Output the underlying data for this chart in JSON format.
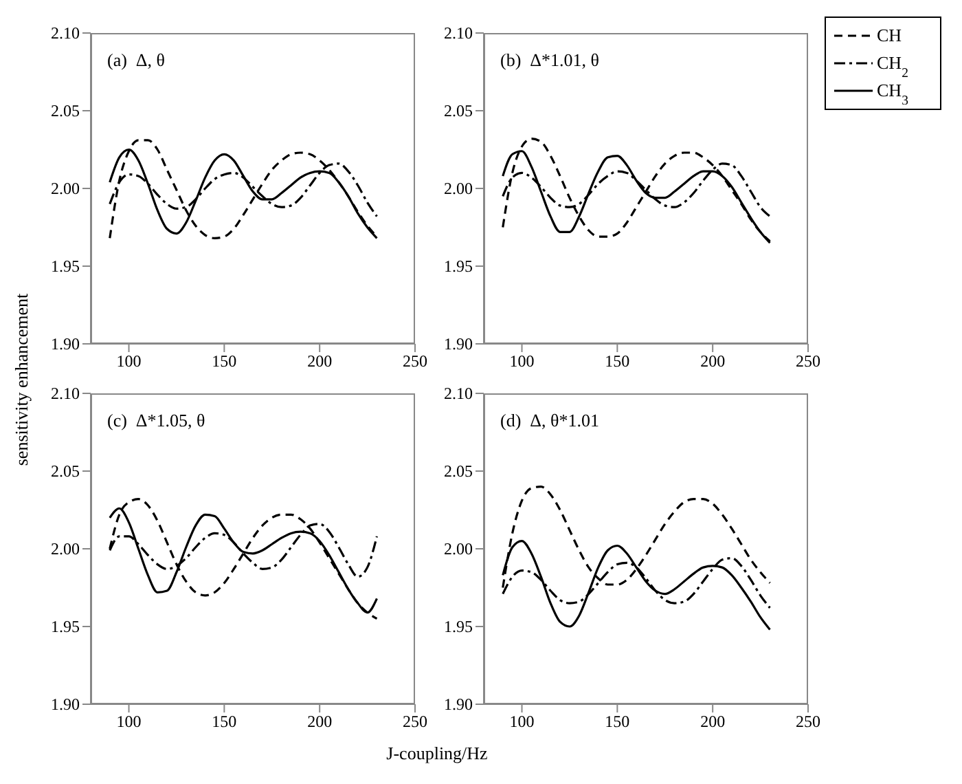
{
  "chart_data": [
    {
      "type": "line",
      "title": "(a)  Δ, θ",
      "ylabel": "sensitivity enhancement",
      "x": [
        90,
        95,
        100,
        105,
        110,
        115,
        120,
        125,
        130,
        135,
        140,
        145,
        150,
        155,
        160,
        165,
        170,
        175,
        180,
        185,
        190,
        195,
        200,
        205,
        210,
        215,
        220,
        225,
        230
      ],
      "xlim": [
        80,
        250
      ],
      "xticks": [
        100,
        150,
        200,
        250
      ],
      "ylim": [
        1.9,
        2.1
      ],
      "yticks": [
        {
          "value": 1.9,
          "label": "1.90"
        },
        {
          "value": 1.95,
          "label": "1.95"
        },
        {
          "value": 2.0,
          "label": "2.00"
        },
        {
          "value": 2.05,
          "label": "2.05"
        },
        {
          "value": 2.1,
          "label": "2.10"
        }
      ],
      "series": [
        {
          "color": "#000000",
          "line_style": "dashed",
          "values": [
            1.968,
            2.005,
            2.024,
            2.031,
            2.031,
            2.025,
            2.012,
            1.999,
            1.986,
            1.976,
            1.97,
            1.968,
            1.969,
            1.974,
            1.983,
            1.993,
            2.003,
            2.012,
            2.018,
            2.022,
            2.023,
            2.022,
            2.018,
            2.012,
            2.004,
            1.995,
            1.985,
            1.976,
            1.969
          ]
        },
        {
          "color": "#000000",
          "line_style": "dotted",
          "values": [
            1.99,
            2.004,
            2.009,
            2.008,
            2.003,
            1.996,
            1.99,
            1.987,
            1.988,
            1.993,
            2.0,
            2.006,
            2.009,
            2.01,
            2.007,
            2.001,
            1.995,
            1.99,
            1.988,
            1.989,
            1.994,
            2.002,
            2.01,
            2.015,
            2.016,
            2.011,
            2.002,
            1.991,
            1.982
          ]
        },
        {
          "color": "#000000",
          "line_style": "solid",
          "values": [
            2.004,
            2.02,
            2.025,
            2.018,
            2.003,
            1.986,
            1.974,
            1.971,
            1.978,
            1.992,
            2.007,
            2.018,
            2.022,
            2.018,
            2.008,
            1.998,
            1.993,
            1.993,
            1.997,
            2.002,
            2.007,
            2.01,
            2.011,
            2.01,
            2.004,
            1.995,
            1.984,
            1.975,
            1.968
          ]
        }
      ]
    },
    {
      "type": "line",
      "title": "(b)  Δ*1.01, θ",
      "legend": "right",
      "x": [
        90,
        95,
        100,
        105,
        110,
        115,
        120,
        125,
        130,
        135,
        140,
        145,
        150,
        155,
        160,
        165,
        170,
        175,
        180,
        185,
        190,
        195,
        200,
        205,
        210,
        215,
        220,
        225,
        230
      ],
      "xlim": [
        80,
        250
      ],
      "xticks": [
        100,
        150,
        200,
        250
      ],
      "ylim": [
        1.9,
        2.1
      ],
      "yticks": [
        {
          "value": 1.9,
          "label": "1.90"
        },
        {
          "value": 1.95,
          "label": "1.95"
        },
        {
          "value": 2.0,
          "label": "2.00"
        },
        {
          "value": 2.05,
          "label": "2.05"
        },
        {
          "value": 2.1,
          "label": "2.10"
        }
      ],
      "series": [
        {
          "name": "CH",
          "color": "#000000",
          "line_style": "dashed",
          "values": [
            1.975,
            2.01,
            2.027,
            2.032,
            2.03,
            2.021,
            2.008,
            1.994,
            1.982,
            1.973,
            1.969,
            1.969,
            1.971,
            1.978,
            1.988,
            1.998,
            2.008,
            2.016,
            2.021,
            2.023,
            2.023,
            2.02,
            2.015,
            2.008,
            1.999,
            1.99,
            1.98,
            1.972,
            1.966
          ]
        },
        {
          "name": "CH$_{2}$",
          "color": "#000000",
          "line_style": "dotted",
          "values": [
            1.995,
            2.007,
            2.01,
            2.007,
            2.001,
            1.994,
            1.989,
            1.988,
            1.99,
            1.996,
            2.003,
            2.008,
            2.011,
            2.01,
            2.005,
            1.999,
            1.993,
            1.989,
            1.988,
            1.991,
            1.997,
            2.005,
            2.012,
            2.016,
            2.015,
            2.008,
            1.998,
            1.988,
            1.982
          ]
        },
        {
          "name": "CH$_{3}$",
          "color": "#000000",
          "line_style": "solid",
          "values": [
            2.008,
            2.022,
            2.024,
            2.014,
            1.998,
            1.982,
            1.972,
            1.972,
            1.982,
            1.997,
            2.011,
            2.02,
            2.021,
            2.015,
            2.005,
            1.997,
            1.994,
            1.994,
            1.998,
            2.003,
            2.008,
            2.011,
            2.011,
            2.008,
            2.001,
            1.991,
            1.981,
            1.972,
            1.965
          ]
        }
      ]
    },
    {
      "type": "line",
      "title": "(c)  Δ*1.05, θ",
      "xlabel": "J-coupling/Hz",
      "x": [
        90,
        95,
        100,
        105,
        110,
        115,
        120,
        125,
        130,
        135,
        140,
        145,
        150,
        155,
        160,
        165,
        170,
        175,
        180,
        185,
        190,
        195,
        200,
        205,
        210,
        215,
        220,
        225,
        230
      ],
      "xlim": [
        80,
        250
      ],
      "xticks": [
        100,
        150,
        200,
        250
      ],
      "ylim": [
        1.9,
        2.1
      ],
      "yticks": [
        {
          "value": 1.9,
          "label": "1.90"
        },
        {
          "value": 1.95,
          "label": "1.95"
        },
        {
          "value": 2.0,
          "label": "2.00"
        },
        {
          "value": 2.05,
          "label": "2.05"
        },
        {
          "value": 2.1,
          "label": "2.10"
        }
      ],
      "series": [
        {
          "color": "#000000",
          "line_style": "dashed",
          "values": [
            2.0,
            2.022,
            2.03,
            2.032,
            2.028,
            2.018,
            2.004,
            1.99,
            1.979,
            1.972,
            1.97,
            1.972,
            1.978,
            1.987,
            1.997,
            2.007,
            2.015,
            2.02,
            2.022,
            2.022,
            2.019,
            2.013,
            2.004,
            1.994,
            1.984,
            1.974,
            1.965,
            1.959,
            1.955
          ]
        },
        {
          "color": "#000000",
          "line_style": "dotted",
          "values": [
            1.999,
            2.008,
            2.008,
            2.003,
            1.996,
            1.99,
            1.987,
            1.989,
            1.994,
            2.001,
            2.007,
            2.01,
            2.009,
            2.004,
            1.997,
            1.991,
            1.987,
            1.988,
            1.993,
            2.001,
            2.009,
            2.015,
            2.016,
            2.011,
            2.001,
            1.99,
            1.982,
            1.988,
            2.008
          ]
        },
        {
          "color": "#000000",
          "line_style": "solid",
          "values": [
            2.02,
            2.026,
            2.017,
            2.0,
            1.983,
            1.972,
            1.973,
            1.985,
            2.001,
            2.015,
            2.022,
            2.021,
            2.013,
            2.004,
            1.998,
            1.997,
            1.999,
            2.003,
            2.007,
            2.01,
            2.011,
            2.01,
            2.005,
            1.996,
            1.985,
            1.974,
            1.965,
            1.959,
            1.968
          ]
        }
      ]
    },
    {
      "type": "line",
      "title": "(d)  Δ, θ*1.01",
      "x": [
        90,
        95,
        100,
        105,
        110,
        115,
        120,
        125,
        130,
        135,
        140,
        145,
        150,
        155,
        160,
        165,
        170,
        175,
        180,
        185,
        190,
        195,
        200,
        205,
        210,
        215,
        220,
        225,
        230
      ],
      "xlim": [
        80,
        250
      ],
      "xticks": [
        100,
        150,
        200,
        250
      ],
      "ylim": [
        1.9,
        2.1
      ],
      "yticks": [
        {
          "value": 1.9,
          "label": "1.90"
        },
        {
          "value": 1.95,
          "label": "1.95"
        },
        {
          "value": 2.0,
          "label": "2.00"
        },
        {
          "value": 2.05,
          "label": "2.05"
        },
        {
          "value": 2.1,
          "label": "2.10"
        }
      ],
      "series": [
        {
          "color": "#000000",
          "line_style": "dashed",
          "values": [
            1.975,
            2.01,
            2.031,
            2.039,
            2.04,
            2.035,
            2.025,
            2.012,
            1.999,
            1.988,
            1.981,
            1.977,
            1.977,
            1.98,
            1.987,
            1.996,
            2.006,
            2.016,
            2.024,
            2.03,
            2.032,
            2.032,
            2.029,
            2.022,
            2.013,
            2.003,
            1.993,
            1.985,
            1.978
          ]
        },
        {
          "color": "#000000",
          "line_style": "dotted",
          "values": [
            1.971,
            1.982,
            1.986,
            1.985,
            1.98,
            1.973,
            1.967,
            1.965,
            1.966,
            1.971,
            1.978,
            1.985,
            1.99,
            1.991,
            1.988,
            1.981,
            1.973,
            1.967,
            1.965,
            1.966,
            1.971,
            1.979,
            1.987,
            1.993,
            1.994,
            1.989,
            1.98,
            1.97,
            1.962
          ]
        },
        {
          "color": "#000000",
          "line_style": "solid",
          "values": [
            1.983,
            2.001,
            2.005,
            1.997,
            1.982,
            1.965,
            1.953,
            1.95,
            1.957,
            1.972,
            1.988,
            1.999,
            2.002,
            1.997,
            1.988,
            1.979,
            1.973,
            1.971,
            1.974,
            1.979,
            1.984,
            1.988,
            1.989,
            1.988,
            1.983,
            1.975,
            1.966,
            1.956,
            1.948
          ]
        }
      ]
    }
  ]
}
